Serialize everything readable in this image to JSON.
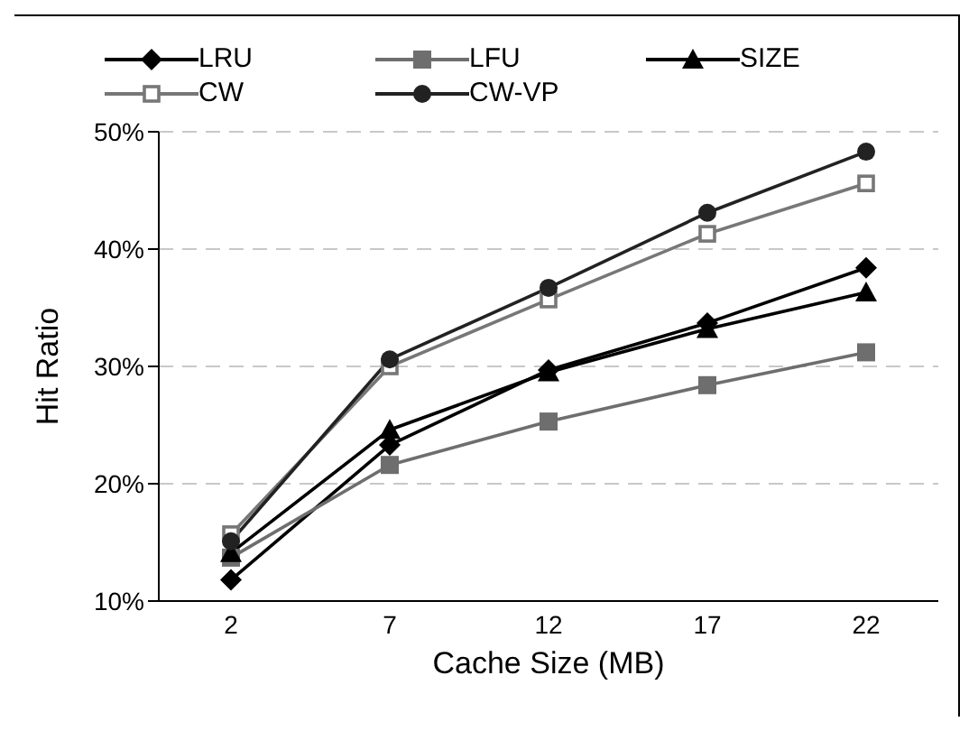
{
  "chart_data": {
    "type": "line",
    "xlabel": "Cache Size (MB)",
    "ylabel": "Hit Ratio",
    "categories": [
      "2",
      "7",
      "12",
      "17",
      "22"
    ],
    "series": [
      {
        "name": "LRU",
        "color": "#000000",
        "marker": "diamond",
        "values": [
          11.8,
          23.3,
          29.7,
          33.7,
          38.4
        ]
      },
      {
        "name": "LFU",
        "color": "#6e6e6e",
        "marker": "square",
        "values": [
          13.7,
          21.6,
          25.3,
          28.4,
          31.2
        ]
      },
      {
        "name": "SIZE",
        "color": "#000000",
        "marker": "triangle",
        "values": [
          14.1,
          24.6,
          29.5,
          33.2,
          36.3
        ]
      },
      {
        "name": "CW",
        "color": "#777777",
        "marker": "square-open",
        "values": [
          15.7,
          30.0,
          35.7,
          41.3,
          45.6
        ]
      },
      {
        "name": "CW-VP",
        "color": "#222222",
        "marker": "circle",
        "values": [
          15.1,
          30.6,
          36.7,
          43.1,
          48.3
        ]
      }
    ],
    "ylim": [
      10,
      50
    ],
    "yticks": [
      {
        "value": 10,
        "label": "10%"
      },
      {
        "value": 20,
        "label": "20%"
      },
      {
        "value": 30,
        "label": "30%"
      },
      {
        "value": 40,
        "label": "40%"
      },
      {
        "value": 50,
        "label": "50%"
      }
    ],
    "grid": "y",
    "legend": "top",
    "line_style": "solid"
  }
}
